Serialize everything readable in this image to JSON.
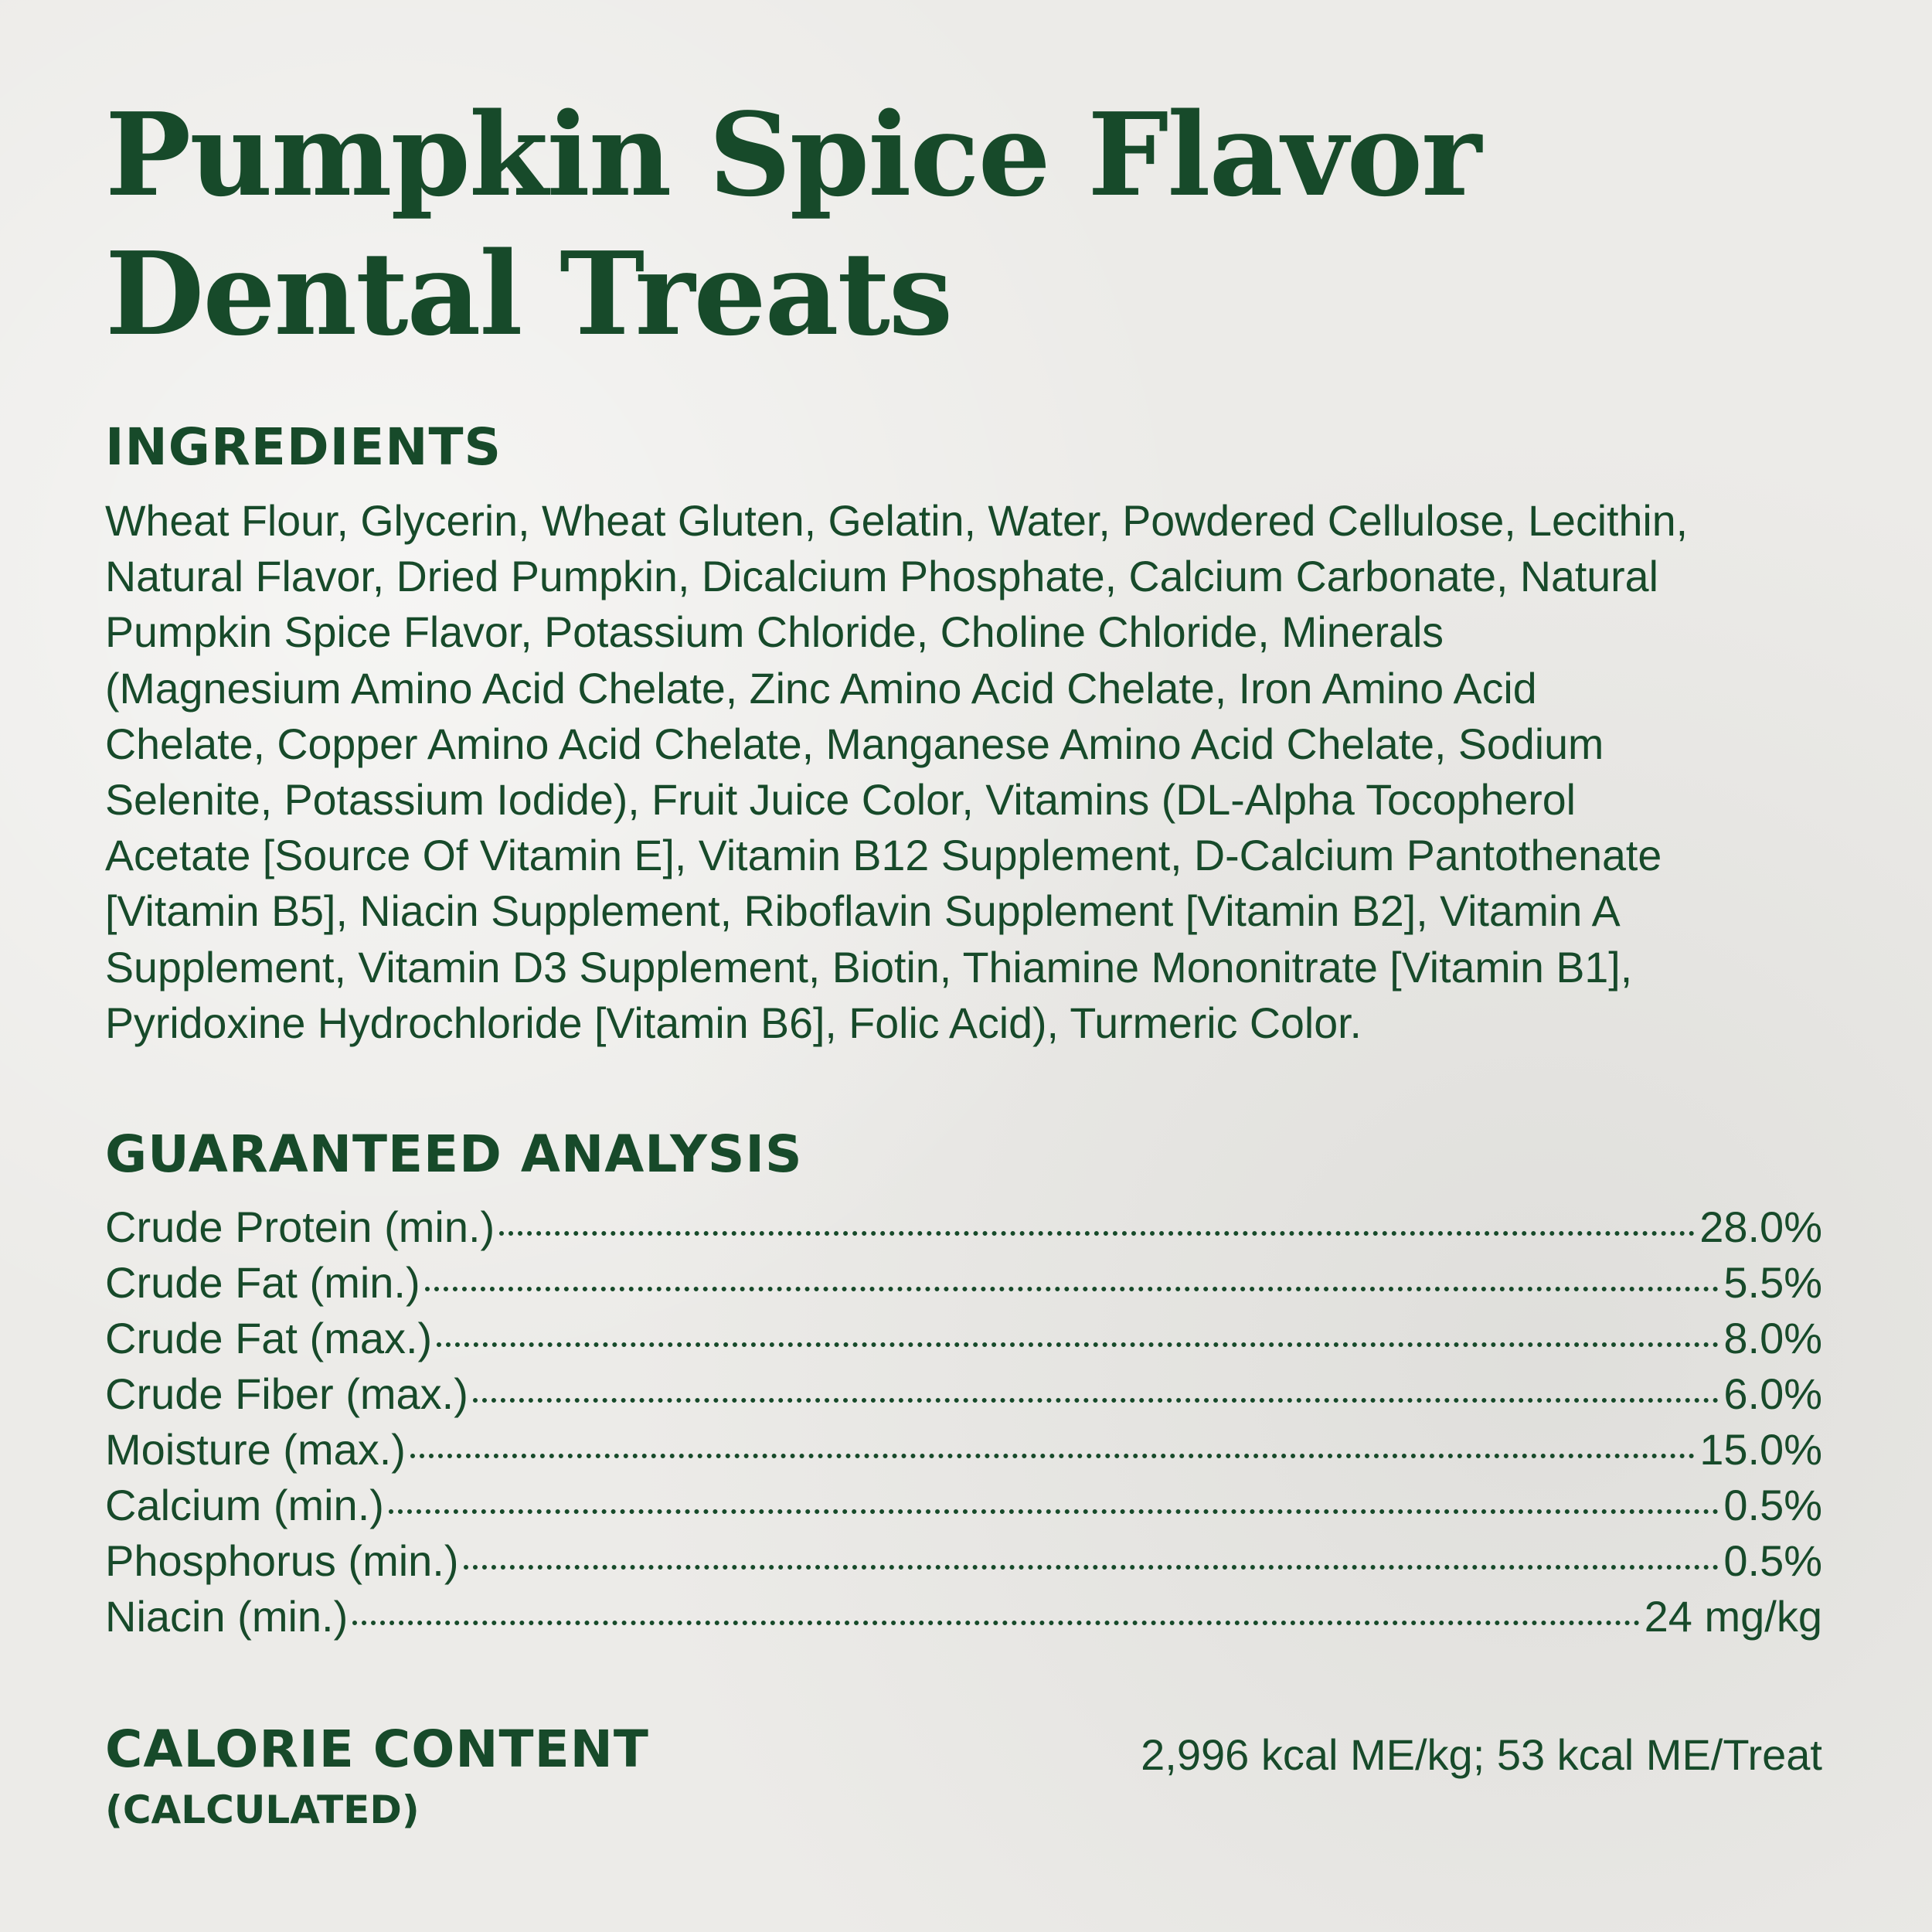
{
  "title": {
    "line1": "Pumpkin Spice Flavor",
    "line2": "Dental Treats"
  },
  "colors": {
    "text": "#174a2a",
    "background": "#ecebe8"
  },
  "ingredients": {
    "heading": "INGREDIENTS",
    "lines": [
      "Wheat Flour, Glycerin, Wheat Gluten, Gelatin, Water, Powdered Cellulose, Lecithin,",
      "Natural Flavor, Dried Pumpkin, Dicalcium Phosphate, Calcium Carbonate, Natural",
      "Pumpkin Spice Flavor, Potassium Chloride, Choline Chloride, Minerals",
      "(Magnesium Amino Acid Chelate, Zinc Amino Acid Chelate, Iron Amino Acid",
      "Chelate, Copper Amino Acid Chelate, Manganese Amino Acid Chelate, Sodium",
      "Selenite, Potassium Iodide), Fruit Juice Color, Vitamins (DL-Alpha Tocopherol",
      "Acetate [Source Of Vitamin E], Vitamin B12 Supplement, D-Calcium Pantothenate",
      "[Vitamin B5], Niacin Supplement, Riboflavin Supplement [Vitamin B2], Vitamin A",
      "Supplement, Vitamin D3 Supplement, Biotin, Thiamine Mononitrate [Vitamin B1],",
      "Pyridoxine Hydrochloride [Vitamin B6], Folic Acid), Turmeric Color."
    ]
  },
  "analysis": {
    "heading": "GUARANTEED ANALYSIS",
    "rows": [
      {
        "label": "Crude Protein (min.)",
        "value": "28.0%"
      },
      {
        "label": "Crude Fat (min.)",
        "value": "5.5%"
      },
      {
        "label": "Crude Fat (max.)",
        "value": "8.0%"
      },
      {
        "label": "Crude Fiber (max.)",
        "value": "6.0%"
      },
      {
        "label": "Moisture (max.)",
        "value": "15.0%"
      },
      {
        "label": "Calcium (min.)",
        "value": "0.5%"
      },
      {
        "label": "Phosphorus (min.)",
        "value": "0.5%"
      },
      {
        "label": "Niacin (min.)",
        "value": "24 mg/kg"
      }
    ]
  },
  "calorie": {
    "heading": "CALORIE CONTENT",
    "subheading": "(CALCULATED)",
    "value": "2,996 kcal ME/kg; 53 kcal ME/Treat"
  }
}
